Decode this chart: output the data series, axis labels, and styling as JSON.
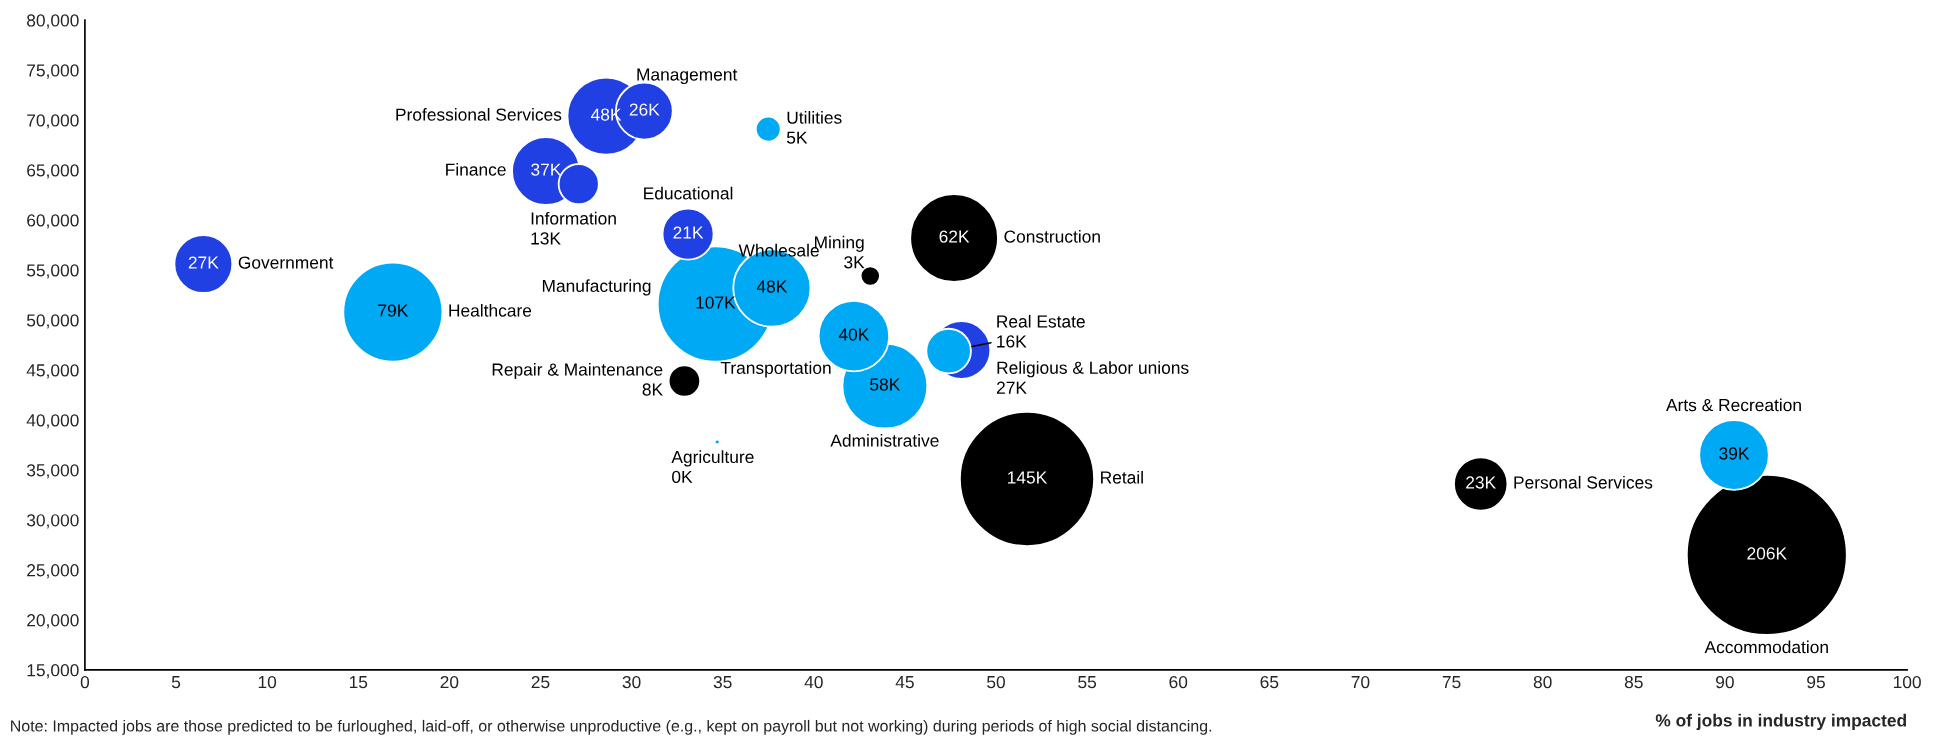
{
  "chart_data": {
    "type": "bubble",
    "xlabel": "% of jobs in industry impacted",
    "xlim": [
      0,
      100
    ],
    "xticks": [
      0,
      5,
      10,
      15,
      20,
      25,
      30,
      35,
      40,
      45,
      50,
      55,
      60,
      65,
      70,
      75,
      80,
      85,
      90,
      95,
      100
    ],
    "ylim": [
      15000,
      80000
    ],
    "yticks": [
      {
        "value": 15000,
        "label": "15,000"
      },
      {
        "value": 20000,
        "label": "20,000"
      },
      {
        "value": 25000,
        "label": "25,000"
      },
      {
        "value": 30000,
        "label": "30,000"
      },
      {
        "value": 35000,
        "label": "35,000"
      },
      {
        "value": 40000,
        "label": "40,000"
      },
      {
        "value": 45000,
        "label": "45,000"
      },
      {
        "value": 50000,
        "label": "50,000"
      },
      {
        "value": 55000,
        "label": "55,000"
      },
      {
        "value": 60000,
        "label": "60,000"
      },
      {
        "value": 65000,
        "label": "65,000"
      },
      {
        "value": 70000,
        "label": "70,000"
      },
      {
        "value": 75000,
        "label": "75,000"
      },
      {
        "value": 80000,
        "label": "80,000"
      }
    ],
    "grid": false,
    "legend": false,
    "annotations": [
      "Note: Impacted jobs are those predicted to be furloughed, laid-off, or otherwise unproductive (e.g., kept on payroll but not working) during periods of high social distancing."
    ],
    "series": [
      {
        "name": "Government",
        "color": "#2140e3",
        "x": [
          6.5
        ],
        "values": [
          55600
        ],
        "sizes": [
          27
        ],
        "value_labels": [
          "27K"
        ]
      },
      {
        "name": "Healthcare",
        "color": "#00a9f4",
        "x": [
          16.9
        ],
        "values": [
          50800
        ],
        "sizes": [
          79
        ],
        "value_labels": [
          "79K"
        ]
      },
      {
        "name": "Professional Services",
        "color": "#2140e3",
        "x": [
          28.6
        ],
        "values": [
          70400
        ],
        "sizes": [
          48
        ],
        "value_labels": [
          "48K"
        ]
      },
      {
        "name": "Management",
        "color": "#2140e3",
        "x": [
          30.7
        ],
        "values": [
          70900
        ],
        "sizes": [
          26
        ],
        "value_labels": [
          "26K"
        ]
      },
      {
        "name": "Finance",
        "color": "#2140e3",
        "x": [
          25.3
        ],
        "values": [
          64900
        ],
        "sizes": [
          37
        ],
        "value_labels": [
          "37K"
        ]
      },
      {
        "name": "Information",
        "color": "#2140e3",
        "x": [
          27.1
        ],
        "values": [
          63600
        ],
        "sizes": [
          13
        ],
        "value_labels": [
          "13K"
        ]
      },
      {
        "name": "Utilities",
        "color": "#00a9f4",
        "x": [
          37.5
        ],
        "values": [
          69100
        ],
        "sizes": [
          5
        ],
        "value_labels": [
          "5K"
        ]
      },
      {
        "name": "Educational",
        "color": "#2140e3",
        "x": [
          33.1
        ],
        "values": [
          58600
        ],
        "sizes": [
          21
        ],
        "value_labels": [
          "21K"
        ]
      },
      {
        "name": "Manufacturing",
        "color": "#00a9f4",
        "x": [
          34.6
        ],
        "values": [
          51600
        ],
        "sizes": [
          107
        ],
        "value_labels": [
          "107K"
        ]
      },
      {
        "name": "Wholesale",
        "color": "#00a9f4",
        "x": [
          37.7
        ],
        "values": [
          53200
        ],
        "sizes": [
          48
        ],
        "value_labels": [
          "48K"
        ]
      },
      {
        "name": "Mining",
        "color": "#000000",
        "x": [
          43.1
        ],
        "values": [
          54400
        ],
        "sizes": [
          3
        ],
        "value_labels": [
          "3K"
        ]
      },
      {
        "name": "Construction",
        "color": "#000000",
        "x": [
          47.7
        ],
        "values": [
          58200
        ],
        "sizes": [
          62
        ],
        "value_labels": [
          "62K"
        ]
      },
      {
        "name": "Transportation",
        "color": "#00a9f4",
        "x": [
          42.2
        ],
        "values": [
          48400
        ],
        "sizes": [
          40
        ],
        "value_labels": [
          "40K"
        ]
      },
      {
        "name": "Administrative",
        "color": "#00a9f4",
        "x": [
          43.9
        ],
        "values": [
          43400
        ],
        "sizes": [
          58
        ],
        "value_labels": [
          "58K"
        ]
      },
      {
        "name": "Real Estate",
        "color": "#00a9f4",
        "x": [
          47.4
        ],
        "values": [
          46900
        ],
        "sizes": [
          16
        ],
        "value_labels": [
          "16K"
        ]
      },
      {
        "name": "Religious & Labor unions",
        "color": "#2140e3",
        "x": [
          48.1
        ],
        "values": [
          47000
        ],
        "sizes": [
          27
        ],
        "value_labels": [
          "27K"
        ]
      },
      {
        "name": "Repair & Maintenance",
        "color": "#000000",
        "x": [
          32.9
        ],
        "values": [
          43900
        ],
        "sizes": [
          8
        ],
        "value_labels": [
          "8K"
        ]
      },
      {
        "name": "Agriculture",
        "color": "#00a9f4",
        "x": [
          34.7
        ],
        "values": [
          37800
        ],
        "sizes": [
          0.2
        ],
        "value_labels": [
          "0K"
        ]
      },
      {
        "name": "Retail",
        "color": "#000000",
        "x": [
          51.7
        ],
        "values": [
          34100
        ],
        "sizes": [
          145
        ],
        "value_labels": [
          "145K"
        ]
      },
      {
        "name": "Personal Services",
        "color": "#000000",
        "x": [
          76.6
        ],
        "values": [
          33600
        ],
        "sizes": [
          23
        ],
        "value_labels": [
          "23K"
        ]
      },
      {
        "name": "Arts & Recreation",
        "color": "#00a9f4",
        "x": [
          90.5
        ],
        "values": [
          36500
        ],
        "sizes": [
          39
        ],
        "value_labels": [
          "39K"
        ]
      },
      {
        "name": "Accommodation",
        "color": "#000000",
        "x": [
          92.3
        ],
        "values": [
          26500
        ],
        "sizes": [
          206
        ],
        "value_labels": [
          "206K"
        ]
      }
    ]
  }
}
